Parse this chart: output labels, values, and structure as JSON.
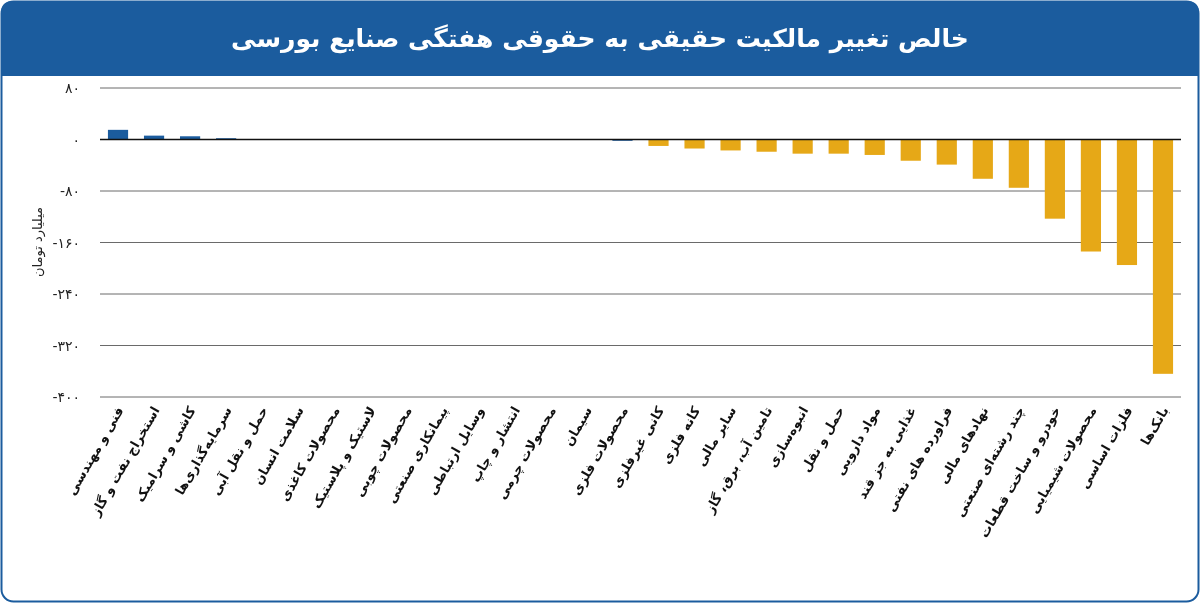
{
  "chart_data": {
    "type": "bar",
    "title": "خالص تغییر مالکیت حقیقی به حقوقی هفتگی صنایع بورسی",
    "ylabel": "میلیارد تومان",
    "categories": [
      "فنی و مهندسی",
      "استخراج نفت و گاز",
      "کاشی و سرامیک",
      "سرمایه‌گذاری‌ها",
      "حمل و نقل آبی",
      "سلامت انسان",
      "محصولات کاغذی",
      "لاستیک و پلاستیک",
      "محصولات چوبی",
      "پیمانکاری صنعتی",
      "وسایل ارتباطی",
      "انتشار و چاپ",
      "محصولات چرمی",
      "سیمان",
      "محصولات فلزی",
      "کانی غیرفلزی",
      "کانه فلزی",
      "سایر مالی",
      "تامین آب، برق، گاز",
      "انبوه‌سازی",
      "حمل و نقل",
      "مواد دارویی",
      "غذایی به جز قند",
      "فراورده های نفتی",
      "نهادهای مالی",
      "چند رشته‌ای صنعتی",
      "خودرو و ساخت قطعات",
      "محصولات شیمیایی",
      "فلزات اساسی",
      "بانک‌ها"
    ],
    "values": [
      15,
      6,
      5,
      2,
      0,
      0,
      0,
      0,
      0,
      0,
      0,
      0,
      0,
      0,
      -2,
      -10,
      -14,
      -17,
      -19,
      -22,
      -22,
      -24,
      -33,
      -39,
      -61,
      -75,
      -123,
      -174,
      -195,
      -364
    ],
    "colors": [
      "#1b5c9e",
      "#1b5c9e",
      "#1b5c9e",
      "#1b5c9e",
      "#1b5c9e",
      "#1b5c9e",
      "#1b5c9e",
      "#1b5c9e",
      "#1b5c9e",
      "#1b5c9e",
      "#1b5c9e",
      "#1b5c9e",
      "#1b5c9e",
      "#1b5c9e",
      "#1b5c9e",
      "#e6a817",
      "#e6a817",
      "#e6a817",
      "#e6a817",
      "#e6a817",
      "#e6a817",
      "#e6a817",
      "#e6a817",
      "#e6a817",
      "#e6a817",
      "#e6a817",
      "#e6a817",
      "#e6a817",
      "#e6a817",
      "#e6a817"
    ],
    "ylim": [
      -400,
      80
    ],
    "yticks": [
      {
        "value": 80,
        "label": "۸۰"
      },
      {
        "value": 0,
        "label": "۰"
      },
      {
        "value": -80,
        "label": "-۸۰"
      },
      {
        "value": -160,
        "label": "-۱۶۰"
      },
      {
        "value": -240,
        "label": "-۲۴۰"
      },
      {
        "value": -320,
        "label": "-۳۲۰"
      },
      {
        "value": -400,
        "label": "-۴۰۰"
      }
    ],
    "grid": "y"
  }
}
